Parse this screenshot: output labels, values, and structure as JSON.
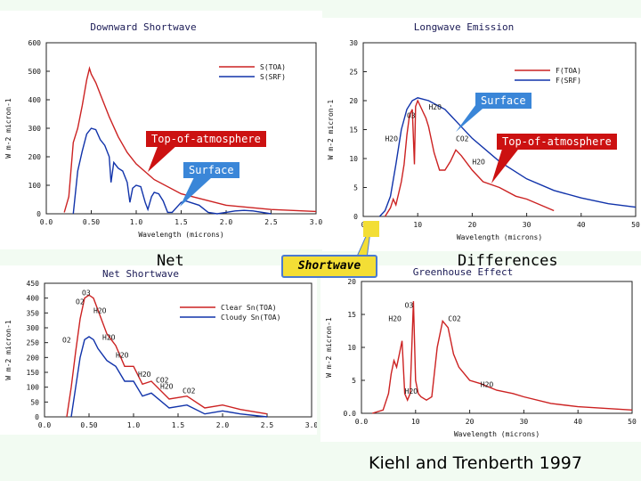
{
  "chart_data": [
    {
      "type": "line",
      "title": "Downward Shortwave",
      "xlabel": "Wavelength (microns)",
      "ylabel": "W m-2 micron-1",
      "xlim": [
        0.0,
        3.0
      ],
      "ylim": [
        0,
        600
      ],
      "xticks": [
        "0.0",
        "0.50",
        "1.0",
        "1.5",
        "2.0",
        "2.5",
        "3.0"
      ],
      "yticks": [
        "0",
        "100",
        "200",
        "300",
        "400",
        "500",
        "600"
      ],
      "legend": [
        "S(TOA)",
        "S(SRF)"
      ],
      "legend_position": "top-right",
      "series": [
        {
          "name": "S(TOA)",
          "color": "#cc2222",
          "x": [
            0.2,
            0.25,
            0.3,
            0.35,
            0.4,
            0.45,
            0.48,
            0.5,
            0.55,
            0.6,
            0.7,
            0.8,
            0.9,
            1.0,
            1.2,
            1.5,
            2.0,
            2.5,
            3.0
          ],
          "y": [
            5,
            60,
            250,
            300,
            380,
            470,
            510,
            490,
            460,
            420,
            340,
            270,
            215,
            175,
            120,
            70,
            30,
            15,
            8
          ]
        },
        {
          "name": "S(SRF)",
          "color": "#1133aa",
          "x": [
            0.3,
            0.32,
            0.35,
            0.4,
            0.45,
            0.5,
            0.55,
            0.6,
            0.65,
            0.7,
            0.72,
            0.75,
            0.8,
            0.85,
            0.9,
            0.93,
            0.96,
            1.0,
            1.05,
            1.1,
            1.13,
            1.17,
            1.2,
            1.25,
            1.3,
            1.35,
            1.4,
            1.5,
            1.55,
            1.6,
            1.7,
            1.8,
            1.9,
            2.0,
            2.1,
            2.2,
            2.3,
            2.5
          ],
          "y": [
            0,
            60,
            150,
            220,
            280,
            300,
            295,
            260,
            240,
            200,
            110,
            180,
            160,
            150,
            110,
            40,
            90,
            100,
            95,
            40,
            15,
            60,
            75,
            70,
            45,
            5,
            5,
            40,
            45,
            40,
            30,
            5,
            0,
            5,
            10,
            12,
            10,
            0
          ]
        }
      ]
    },
    {
      "type": "line",
      "title": "Longwave Emission",
      "xlabel": "Wavelength (microns)",
      "ylabel": "W m-2 micron-1",
      "xlim": [
        0,
        50
      ],
      "ylim": [
        0,
        30
      ],
      "xticks": [
        "0",
        "10",
        "20",
        "30",
        "40",
        "50"
      ],
      "yticks": [
        "0",
        "5",
        "10",
        "15",
        "20",
        "25",
        "30"
      ],
      "legend": [
        "F(TOA)",
        "F(SRF)"
      ],
      "legend_position": "top-right",
      "annotations": [
        "O3",
        "H2O",
        "H2O",
        "CO2",
        "H2O"
      ],
      "series": [
        {
          "name": "F(SRF)",
          "color": "#1133aa",
          "x": [
            3,
            4,
            5,
            6,
            7,
            8,
            9,
            10,
            12,
            15,
            20,
            25,
            30,
            35,
            40,
            45,
            50
          ],
          "y": [
            0,
            1,
            3.5,
            9,
            15,
            18.5,
            20,
            20.5,
            20,
            18.5,
            13.5,
            9.5,
            6.5,
            4.5,
            3.2,
            2.2,
            1.6
          ]
        },
        {
          "name": "F(TOA)",
          "color": "#cc2222",
          "x": [
            4,
            5,
            5.5,
            6,
            6.5,
            7,
            7.5,
            8,
            8.5,
            9,
            9.4,
            9.6,
            10,
            10.5,
            11,
            11.5,
            12,
            13,
            14,
            15,
            16,
            17,
            18,
            20,
            22,
            25,
            28,
            30,
            35
          ],
          "y": [
            0,
            1.5,
            3,
            2,
            4,
            6,
            9,
            14,
            17.5,
            18.5,
            9,
            19,
            20,
            19,
            18,
            17,
            15.5,
            11,
            8,
            8,
            9.5,
            11.5,
            10.5,
            8,
            6,
            5,
            3.5,
            3,
            1
          ]
        }
      ]
    },
    {
      "type": "line",
      "title": "Net Shortwave",
      "xlabel": "Wavelength (microns)",
      "ylabel": "W m-2 micron-1",
      "xlim": [
        0.0,
        3.0
      ],
      "ylim": [
        0,
        450
      ],
      "xticks": [
        "0.0",
        "0.50",
        "1.0",
        "1.5",
        "2.0",
        "2.5",
        "3.0"
      ],
      "yticks": [
        "0",
        "50",
        "100",
        "150",
        "200",
        "250",
        "300",
        "350",
        "400",
        "450"
      ],
      "legend": [
        "Clear Sn(TOA)",
        "Cloudy Sn(TOA)"
      ],
      "legend_position": "top-right",
      "annotations": [
        "O3",
        "O2",
        "H2O",
        "O2",
        "H2O",
        "H2O",
        "H2O",
        "CO2",
        "H2O",
        "CO2"
      ],
      "series": [
        {
          "name": "Clear Sn(TOA)",
          "color": "#cc2222",
          "x": [
            0.25,
            0.3,
            0.35,
            0.4,
            0.45,
            0.5,
            0.55,
            0.6,
            0.7,
            0.8,
            0.9,
            1.0,
            1.1,
            1.2,
            1.4,
            1.6,
            1.8,
            2.0,
            2.2,
            2.5
          ],
          "y": [
            0,
            100,
            220,
            330,
            400,
            410,
            400,
            360,
            280,
            240,
            170,
            170,
            110,
            120,
            60,
            70,
            30,
            40,
            25,
            10
          ]
        },
        {
          "name": "Cloudy Sn(TOA)",
          "color": "#1133aa",
          "x": [
            0.3,
            0.35,
            0.4,
            0.45,
            0.5,
            0.55,
            0.6,
            0.7,
            0.8,
            0.9,
            1.0,
            1.1,
            1.2,
            1.4,
            1.6,
            1.8,
            2.0,
            2.2,
            2.5
          ],
          "y": [
            0,
            100,
            200,
            260,
            270,
            260,
            230,
            190,
            170,
            120,
            120,
            70,
            80,
            30,
            40,
            10,
            20,
            10,
            0
          ]
        }
      ]
    },
    {
      "type": "line",
      "title": "Greenhouse Effect",
      "xlabel": "Wavelength (microns)",
      "ylabel": "W m-2 micron-1",
      "xlim": [
        0,
        50
      ],
      "ylim": [
        0,
        20
      ],
      "xticks": [
        "0.0",
        "10",
        "20",
        "30",
        "40",
        "50"
      ],
      "yticks": [
        "0.0",
        "5",
        "10",
        "15",
        "20"
      ],
      "annotations": [
        "O3",
        "H2O",
        "CO2",
        "H2O",
        "H2O"
      ],
      "series": [
        {
          "name": "Greenhouse Effect",
          "color": "#cc2222",
          "x": [
            2,
            4,
            5,
            5.5,
            6,
            6.5,
            7,
            7.5,
            8,
            8.5,
            9,
            9.6,
            10,
            10.5,
            11,
            12,
            13,
            14,
            15,
            16,
            17,
            18,
            20,
            22,
            25,
            28,
            30,
            35,
            40,
            50
          ],
          "y": [
            0,
            0.5,
            3,
            6,
            8,
            7,
            9,
            11,
            3,
            2,
            3,
            17,
            5,
            3,
            2.5,
            2,
            2.5,
            10,
            14,
            13,
            9,
            7,
            5,
            4.5,
            3.5,
            3,
            2.5,
            1.5,
            1,
            0.5
          ]
        }
      ]
    }
  ],
  "callouts": {
    "surface_top_left": "Surface",
    "toa_left": "Top-of-atmosphere",
    "surface_top_right": "Surface",
    "toa_right": "Top-of-atmosphere"
  },
  "captions": {
    "net": "Net",
    "shortwave": "Shortwave",
    "differences": "Differences"
  },
  "credit": "Kiehl and Trenberth 1997",
  "colors": {
    "red_series": "#cc2222",
    "blue_series": "#1133aa",
    "callout_red": "#cc1111",
    "callout_blue": "#3a86d8",
    "highlight_yellow": "#f3de35"
  }
}
